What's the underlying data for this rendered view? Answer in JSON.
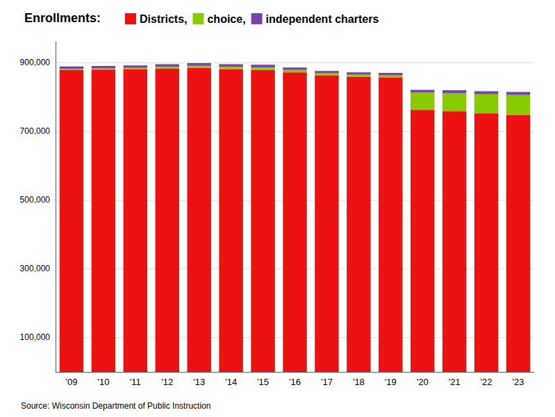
{
  "chart_data": {
    "type": "bar",
    "title": "Enrollments:",
    "annotations": [
      "Source: Wisconsin Department of Public Instruction"
    ],
    "categories": [
      "'09",
      "'10",
      "'11",
      "'12",
      "'13",
      "'14",
      "'15",
      "'16",
      "'17",
      "'18",
      "'19",
      "'20",
      "'21",
      "'22",
      "'23"
    ],
    "series": [
      {
        "name": "Districts,",
        "color": "#ee1111",
        "values": [
          878000,
          879000,
          880000,
          882000,
          884000,
          880000,
          878000,
          871000,
          862000,
          858000,
          856000,
          762000,
          758000,
          752000,
          747000
        ]
      },
      {
        "name": "choice,",
        "color": "#88cc00",
        "values": [
          3000,
          3500,
          4000,
          5000,
          6000,
          7000,
          7500,
          7000,
          6000,
          6000,
          6000,
          50000,
          52000,
          55000,
          58000
        ]
      },
      {
        "name": "independent charters",
        "color": "#7744aa",
        "values": [
          7000,
          7000,
          7000,
          7500,
          7500,
          7500,
          7500,
          7000,
          7000,
          7000,
          7000,
          8000,
          9000,
          9000,
          9000
        ]
      }
    ],
    "stacked": true,
    "ylim": [
      0,
      960000
    ],
    "yticks": [
      {
        "value": 100000,
        "label": "100,000"
      },
      {
        "value": 300000,
        "label": "300,000"
      },
      {
        "value": 500000,
        "label": "500,000"
      },
      {
        "value": 700000,
        "label": "700,000"
      },
      {
        "value": 900000,
        "label": "900,000"
      }
    ],
    "grid": true,
    "legend": "top"
  }
}
